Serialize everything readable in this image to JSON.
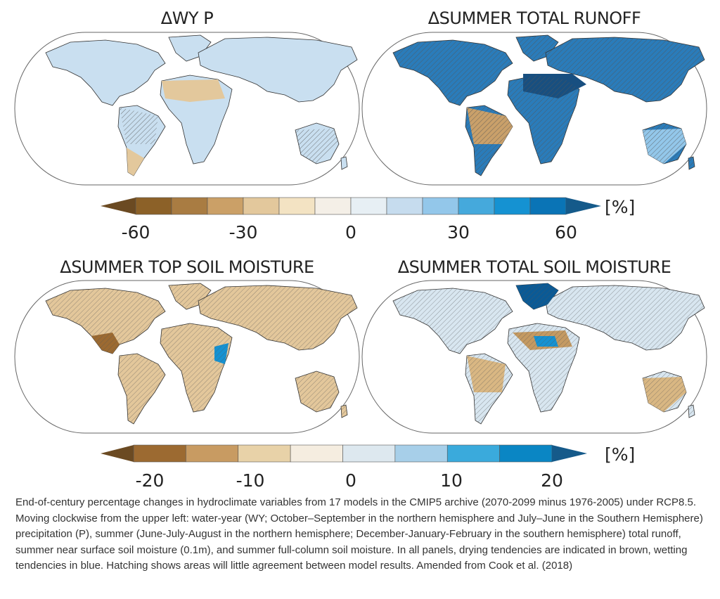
{
  "panels": [
    {
      "title": "ΔWY P",
      "fill": "#c9dff0",
      "accent": "#e3c89c"
    },
    {
      "title": "ΔSUMMER TOTAL RUNOFF",
      "fill": "#2a7cba",
      "accent": "#c9a06a"
    },
    {
      "title": "ΔSUMMER TOP SOIL MOISTURE",
      "fill": "#e3c79b",
      "accent": "#c49a62"
    },
    {
      "title": "ΔSUMMER TOTAL SOIL MOISTURE",
      "fill": "#d8e6f0",
      "accent": "#d9b783"
    }
  ],
  "colorbar_top": {
    "unit": "[%]",
    "ticks": [
      "-60",
      "-30",
      "0",
      "30",
      "60"
    ],
    "colors": [
      "#6b4a22",
      "#8c6128",
      "#a97c42",
      "#cba067",
      "#e3c89c",
      "#f3e3c3",
      "#f4efe7",
      "#e7eff4",
      "#c6dcee",
      "#93c7ea",
      "#45a9dc",
      "#1592d2",
      "#0a74b6",
      "#155a8a"
    ]
  },
  "colorbar_bottom": {
    "unit": "[%]",
    "ticks": [
      "-20",
      "-10",
      "0",
      "10",
      "20"
    ],
    "colors": [
      "#6b4a22",
      "#9c6a31",
      "#c89b62",
      "#e8d2a8",
      "#f5ede0",
      "#dde8ef",
      "#a7cfe9",
      "#3aaadc",
      "#0a86c4",
      "#155a8a"
    ]
  },
  "caption": "End-of-century percentage changes in hydroclimate variables from 17 models in the CMIP5 archive (2070-2099 minus 1976-2005) under RCP8.5. Moving clockwise from the upper left: water-year (WY; October–September in the northern hemisphere and July–June in the Southern Hemisphere) precipitation (P), summer (June-July-August in the northern hemisphere; December-January-February in the southern hemisphere) total runoff, summer near surface soil moisture (0.1m), and summer full-column soil moisture. In all panels, drying tendencies are indicated in brown, wetting tendencies in blue. Hatching shows areas will little agreement between model results. Amended from Cook et al. (2018)"
}
